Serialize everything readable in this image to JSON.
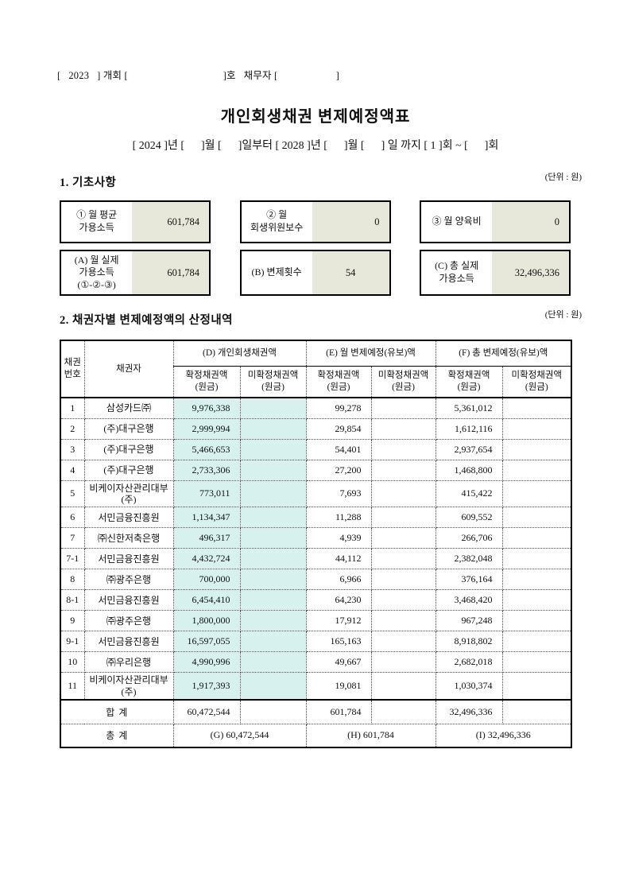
{
  "colors": {
    "highlight": "#d7f2ee",
    "box_fill": "#e8e8da"
  },
  "header": {
    "case_line": "[   2023   ] 개회 [                                    ]호   채무자 [                      ]",
    "title": "개인회생채권 변제예정액표",
    "period_line": "[ 2024 ]년 [      ]월 [      ]일부터 [ 2028 ]년 [      ]월 [      ] 일 까지 [ 1 ]회 ~ [      ]회"
  },
  "section1": {
    "heading": "1. 기초사항",
    "unit": "(단위 : 원)",
    "row1": [
      {
        "label": "① 월 평균\n가용소득",
        "value": "601,784"
      },
      {
        "label": "② 월\n회생위원보수",
        "value": "0"
      },
      {
        "label": "③ 월 양육비",
        "value": "0"
      }
    ],
    "row2": [
      {
        "label": "(A) 월 실제\n가용소득\n(①-②-③)",
        "value": "601,784"
      },
      {
        "label": "(B) 변제횟수",
        "value": "54"
      },
      {
        "label": "(C) 총 실제\n가용소득",
        "value": "32,496,336"
      }
    ]
  },
  "section2": {
    "heading": "2. 채권자별 변제예정액의 산정내역",
    "unit": "(단위 : 원)",
    "table": {
      "headers": {
        "no": "채권\n번호",
        "creditor": "채권자",
        "group_d": "(D) 개인회생채권액",
        "group_e": "(E) 월 변제예정(유보)액",
        "group_f": "(F) 총 변제예정(유보)액",
        "sub_confirmed": "확정채권액\n(원금)",
        "sub_unconfirmed": "미확정채권액\n(원금)"
      },
      "rows": [
        {
          "no": "1",
          "creditor": "삼성카드㈜",
          "d_confirmed": "9,976,338",
          "d_unconfirmed": "",
          "e_confirmed": "99,278",
          "e_unconfirmed": "",
          "f_confirmed": "5,361,012",
          "f_unconfirmed": ""
        },
        {
          "no": "2",
          "creditor": "(주)대구은행",
          "d_confirmed": "2,999,994",
          "d_unconfirmed": "",
          "e_confirmed": "29,854",
          "e_unconfirmed": "",
          "f_confirmed": "1,612,116",
          "f_unconfirmed": ""
        },
        {
          "no": "3",
          "creditor": "(주)대구은행",
          "d_confirmed": "5,466,653",
          "d_unconfirmed": "",
          "e_confirmed": "54,401",
          "e_unconfirmed": "",
          "f_confirmed": "2,937,654",
          "f_unconfirmed": ""
        },
        {
          "no": "4",
          "creditor": "(주)대구은행",
          "d_confirmed": "2,733,306",
          "d_unconfirmed": "",
          "e_confirmed": "27,200",
          "e_unconfirmed": "",
          "f_confirmed": "1,468,800",
          "f_unconfirmed": ""
        },
        {
          "no": "5",
          "creditor": "비케이자산관리대부\n(주)",
          "d_confirmed": "773,011",
          "d_unconfirmed": "",
          "e_confirmed": "7,693",
          "e_unconfirmed": "",
          "f_confirmed": "415,422",
          "f_unconfirmed": ""
        },
        {
          "no": "6",
          "creditor": "서민금융진흥원",
          "d_confirmed": "1,134,347",
          "d_unconfirmed": "",
          "e_confirmed": "11,288",
          "e_unconfirmed": "",
          "f_confirmed": "609,552",
          "f_unconfirmed": ""
        },
        {
          "no": "7",
          "creditor": "㈜신한저축은행",
          "d_confirmed": "496,317",
          "d_unconfirmed": "",
          "e_confirmed": "4,939",
          "e_unconfirmed": "",
          "f_confirmed": "266,706",
          "f_unconfirmed": ""
        },
        {
          "no": "7-1",
          "creditor": "서민금융진흥원",
          "d_confirmed": "4,432,724",
          "d_unconfirmed": "",
          "e_confirmed": "44,112",
          "e_unconfirmed": "",
          "f_confirmed": "2,382,048",
          "f_unconfirmed": ""
        },
        {
          "no": "8",
          "creditor": "㈜광주은행",
          "d_confirmed": "700,000",
          "d_unconfirmed": "",
          "e_confirmed": "6,966",
          "e_unconfirmed": "",
          "f_confirmed": "376,164",
          "f_unconfirmed": ""
        },
        {
          "no": "8-1",
          "creditor": "서민금융진흥원",
          "d_confirmed": "6,454,410",
          "d_unconfirmed": "",
          "e_confirmed": "64,230",
          "e_unconfirmed": "",
          "f_confirmed": "3,468,420",
          "f_unconfirmed": ""
        },
        {
          "no": "9",
          "creditor": "㈜광주은행",
          "d_confirmed": "1,800,000",
          "d_unconfirmed": "",
          "e_confirmed": "17,912",
          "e_unconfirmed": "",
          "f_confirmed": "967,248",
          "f_unconfirmed": ""
        },
        {
          "no": "9-1",
          "creditor": "서민금융진흥원",
          "d_confirmed": "16,597,055",
          "d_unconfirmed": "",
          "e_confirmed": "165,163",
          "e_unconfirmed": "",
          "f_confirmed": "8,918,802",
          "f_unconfirmed": ""
        },
        {
          "no": "10",
          "creditor": "㈜우리은행",
          "d_confirmed": "4,990,996",
          "d_unconfirmed": "",
          "e_confirmed": "49,667",
          "e_unconfirmed": "",
          "f_confirmed": "2,682,018",
          "f_unconfirmed": ""
        },
        {
          "no": "11",
          "creditor": "비케이자산관리대부\n(주)",
          "d_confirmed": "1,917,393",
          "d_unconfirmed": "",
          "e_confirmed": "19,081",
          "e_unconfirmed": "",
          "f_confirmed": "1,030,374",
          "f_unconfirmed": ""
        }
      ],
      "subtotal": {
        "label": "합 계",
        "d_confirmed": "60,472,544",
        "d_unconfirmed": "",
        "e_confirmed": "601,784",
        "e_unconfirmed": "",
        "f_confirmed": "32,496,336",
        "f_unconfirmed": ""
      },
      "total": {
        "label": "총 계",
        "d": "(G) 60,472,544",
        "e": "(H) 601,784",
        "f": "(I) 32,496,336"
      }
    }
  }
}
